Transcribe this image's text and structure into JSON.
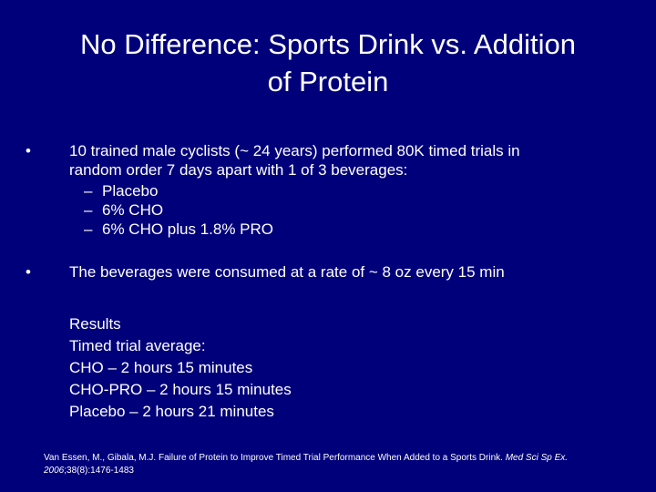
{
  "title": {
    "line1": "No Difference: Sports Drink vs. Addition",
    "line2": "of Protein"
  },
  "bullets": [
    {
      "marker": "•",
      "line1": "10 trained male cyclists (~ 24 years) performed 80K timed trials in",
      "line2": "random order 7 days apart with 1 of 3 beverages:",
      "subitems": [
        {
          "marker": "–",
          "text": "Placebo"
        },
        {
          "marker": "–",
          "text": "6% CHO"
        },
        {
          "marker": "–",
          "text": "6% CHO plus 1.8% PRO"
        }
      ]
    },
    {
      "marker": "•",
      "line1": "The beverages were consumed at a rate of ~ 8 oz every 15 min"
    }
  ],
  "results": [
    "Results",
    "Timed trial average:",
    "CHO – 2 hours 15 minutes",
    "CHO-PRO – 2 hours 15 minutes",
    "Placebo – 2 hours 21 minutes"
  ],
  "citation": {
    "text": "Van Essen, M., Gibala, M.J. Failure of Protein to Improve Timed Trial Performance When Added to a Sports Drink.",
    "journal": "Med Sci Sp Ex. 2006",
    "volume": ";38(8):1476-1483"
  },
  "colors": {
    "background": "#00007a",
    "text": "#ffffff"
  }
}
